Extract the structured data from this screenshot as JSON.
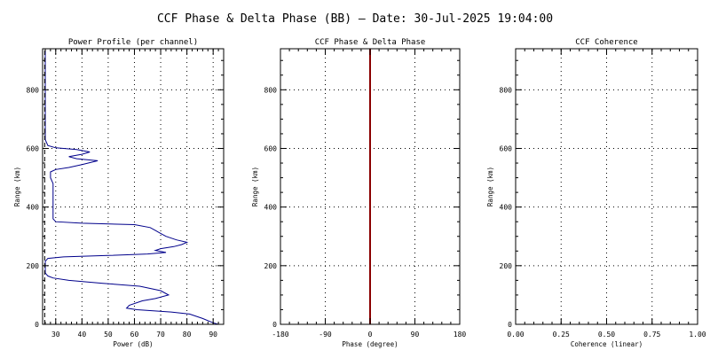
{
  "figure": {
    "title": "CCF Phase & Delta Phase (BB) — Date: 30-Jul-2025 19:04:00"
  },
  "chart_data": [
    {
      "type": "line",
      "title": "Power Profile (per channel)",
      "xlabel": "Power (dB)",
      "ylabel": "Range (km)",
      "xlim": [
        25,
        94
      ],
      "ylim": [
        0,
        940
      ],
      "xticks": [
        30,
        40,
        50,
        60,
        70,
        80,
        90
      ],
      "yticks": [
        0,
        200,
        400,
        600,
        800
      ],
      "grid": true,
      "series": [
        {
          "name": "",
          "color": "#00008b",
          "points": [
            [
              92,
              0
            ],
            [
              90,
              5
            ],
            [
              86,
              20
            ],
            [
              81,
              35
            ],
            [
              74,
              42
            ],
            [
              61,
              50
            ],
            [
              57,
              55
            ],
            [
              58,
              65
            ],
            [
              63,
              80
            ],
            [
              68,
              88
            ],
            [
              73,
              100
            ],
            [
              70,
              115
            ],
            [
              62,
              130
            ],
            [
              48,
              140
            ],
            [
              35,
              150
            ],
            [
              29,
              158
            ],
            [
              27,
              165
            ],
            [
              26,
              175
            ],
            [
              26,
              200
            ],
            [
              26,
              215
            ],
            [
              27,
              225
            ],
            [
              33,
              230
            ],
            [
              50,
              235
            ],
            [
              65,
              240
            ],
            [
              72,
              245
            ],
            [
              68,
              252
            ],
            [
              70,
              258
            ],
            [
              75,
              265
            ],
            [
              78,
              272
            ],
            [
              80,
              280
            ],
            [
              76,
              288
            ],
            [
              72,
              300
            ],
            [
              70,
              310
            ],
            [
              68,
              320
            ],
            [
              66,
              330
            ],
            [
              60,
              340
            ],
            [
              40,
              345
            ],
            [
              30,
              350
            ],
            [
              29,
              360
            ],
            [
              29,
              400
            ],
            [
              29,
              450
            ],
            [
              29,
              480
            ],
            [
              28,
              500
            ],
            [
              28,
              520
            ],
            [
              30,
              528
            ],
            [
              35,
              535
            ],
            [
              40,
              545
            ],
            [
              46,
              558
            ],
            [
              38,
              565
            ],
            [
              35,
              572
            ],
            [
              40,
              580
            ],
            [
              43,
              588
            ],
            [
              38,
              596
            ],
            [
              30,
              602
            ],
            [
              27,
              610
            ],
            [
              26,
              630
            ],
            [
              26,
              700
            ],
            [
              26,
              800
            ],
            [
              26,
              940
            ]
          ]
        },
        {
          "name": "",
          "color": "#000000",
          "dash": true,
          "points": [
            [
              25.8,
              0
            ],
            [
              25.8,
              940
            ]
          ]
        }
      ]
    },
    {
      "type": "line",
      "title": "CCF Phase & Delta Phase",
      "xlabel": "Phase (degree)",
      "ylabel": "Range (km)",
      "xlim": [
        -180,
        180
      ],
      "ylim": [
        0,
        940
      ],
      "xticks": [
        -180,
        -90,
        0,
        90,
        180
      ],
      "yticks": [
        0,
        200,
        400,
        600,
        800
      ],
      "grid": true,
      "series": [
        {
          "name": "",
          "color": "#8b0000",
          "points": [
            [
              0,
              0
            ],
            [
              0,
              940
            ]
          ]
        }
      ]
    },
    {
      "type": "line",
      "title": "CCF Coherence",
      "xlabel": "Coherence (linear)",
      "ylabel": "Range (km)",
      "xlim": [
        0,
        1
      ],
      "ylim": [
        0,
        940
      ],
      "xticks": [
        "0.00",
        "0.25",
        "0.50",
        "0.75",
        "1.00"
      ],
      "yticks": [
        0,
        200,
        400,
        600,
        800
      ],
      "grid": true,
      "series": []
    }
  ]
}
